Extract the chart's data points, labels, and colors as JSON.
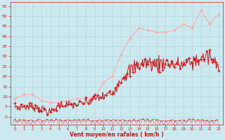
{
  "background_color": "#cde9f0",
  "grid_color": "#b0d8e0",
  "line_color_avg": "#dd1111",
  "line_color_gust": "#ffaaaa",
  "marker_color_gust": "#ffaaaa",
  "xlabel": "Vent moyen/en rafales ( km/h )",
  "xlabel_color": "#dd1111",
  "tick_color": "#dd1111",
  "yticks": [
    0,
    5,
    10,
    15,
    20,
    25,
    30,
    35,
    40,
    45,
    50,
    55
  ],
  "xticks": [
    0,
    1,
    2,
    3,
    4,
    5,
    6,
    7,
    8,
    9,
    10,
    11,
    12,
    13,
    14,
    15,
    16,
    17,
    18,
    19,
    20,
    21,
    22,
    23
  ],
  "xlim": [
    -0.5,
    23.5
  ],
  "ylim": [
    -4,
    57
  ],
  "gust_wind": [
    9,
    11,
    11,
    8,
    7,
    7,
    8,
    9,
    9,
    9,
    17,
    20,
    31,
    39,
    44,
    43,
    42,
    42,
    43,
    46,
    44,
    53,
    46,
    51
  ],
  "avg_wind_dense_x": [
    0.0,
    0.08,
    0.17,
    0.25,
    0.33,
    0.42,
    0.5,
    0.58,
    0.67,
    0.75,
    0.83,
    0.92,
    1.0,
    1.08,
    1.17,
    1.25,
    1.33,
    1.42,
    1.5,
    1.58,
    1.67,
    1.75,
    1.83,
    1.92,
    2.0,
    2.08,
    2.17,
    2.25,
    2.33,
    2.42,
    2.5,
    2.58,
    2.67,
    2.75,
    2.83,
    2.92,
    3.0,
    3.08,
    3.17,
    3.25,
    3.33,
    3.42,
    3.5,
    3.58,
    3.67,
    3.75,
    3.83,
    3.92,
    4.0,
    4.08,
    4.17,
    4.25,
    4.33,
    4.42,
    4.5,
    4.58,
    4.67,
    4.75,
    4.83,
    4.92,
    5.0,
    5.08,
    5.17,
    5.25,
    5.33,
    5.42,
    5.5,
    5.58,
    5.67,
    5.75,
    5.83,
    5.92,
    6.0,
    6.08,
    6.17,
    6.25,
    6.33,
    6.42,
    6.5,
    6.58,
    6.67,
    6.75,
    6.83,
    6.92,
    7.0,
    7.08,
    7.17,
    7.25,
    7.33,
    7.42,
    7.5,
    7.58,
    7.67,
    7.75,
    7.83,
    7.92,
    8.0,
    8.08,
    8.17,
    8.25,
    8.33,
    8.42,
    8.5,
    8.58,
    8.67,
    8.75,
    8.83,
    8.92,
    9.0,
    9.08,
    9.17,
    9.25,
    9.33,
    9.42,
    9.5,
    9.58,
    9.67,
    9.75,
    9.83,
    9.92,
    10.0,
    10.08,
    10.17,
    10.25,
    10.33,
    10.42,
    10.5,
    10.58,
    10.67,
    10.75,
    10.83,
    10.92,
    11.0,
    11.08,
    11.17,
    11.25,
    11.33,
    11.42,
    11.5,
    11.58,
    11.67,
    11.75,
    11.83,
    11.92,
    12.0,
    12.08,
    12.17,
    12.25,
    12.33,
    12.42,
    12.5,
    12.58,
    12.67,
    12.75,
    12.83,
    12.92,
    13.0,
    13.08,
    13.17,
    13.25,
    13.33,
    13.42,
    13.5,
    13.58,
    13.67,
    13.75,
    13.83,
    13.92,
    14.0,
    14.08,
    14.17,
    14.25,
    14.33,
    14.42,
    14.5,
    14.58,
    14.67,
    14.75,
    14.83,
    14.92,
    15.0,
    15.08,
    15.17,
    15.25,
    15.33,
    15.42,
    15.5,
    15.58,
    15.67,
    15.75,
    15.83,
    15.92,
    16.0,
    16.08,
    16.17,
    16.25,
    16.33,
    16.42,
    16.5,
    16.58,
    16.67,
    16.75,
    16.83,
    16.92,
    17.0,
    17.08,
    17.17,
    17.25,
    17.33,
    17.42,
    17.5,
    17.58,
    17.67,
    17.75,
    17.83,
    17.92,
    18.0,
    18.08,
    18.17,
    18.25,
    18.33,
    18.42,
    18.5,
    18.58,
    18.67,
    18.75,
    18.83,
    18.92,
    19.0,
    19.08,
    19.17,
    19.25,
    19.33,
    19.42,
    19.5,
    19.58,
    19.67,
    19.75,
    19.83,
    19.92,
    20.0,
    20.08,
    20.17,
    20.25,
    20.33,
    20.42,
    20.5,
    20.58,
    20.67,
    20.75,
    20.83,
    20.92,
    21.0,
    21.08,
    21.17,
    21.25,
    21.33,
    21.42,
    21.5,
    21.58,
    21.67,
    21.75,
    21.83,
    21.92,
    22.0,
    22.08,
    22.17,
    22.25,
    22.33,
    22.42,
    22.5,
    22.58,
    22.67,
    22.75,
    22.83,
    22.92,
    23.0
  ],
  "avg_base_hourly": [
    5,
    5,
    5,
    4,
    2,
    6,
    6,
    6,
    7,
    9,
    10,
    12,
    19,
    23,
    26,
    27,
    26,
    27,
    26,
    26,
    27,
    29,
    30,
    24
  ]
}
